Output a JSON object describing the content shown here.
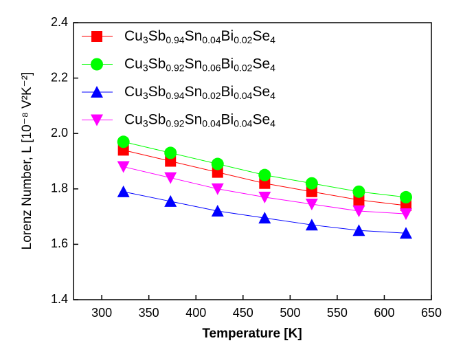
{
  "chart_data": {
    "type": "line",
    "x_label": "Temperature [K]",
    "y_label": "Lorenz Number, L [10⁻⁸ V²K⁻²]",
    "x": [
      323,
      373,
      423,
      473,
      523,
      573,
      623
    ],
    "series": [
      {
        "name": "Cu3Sb0.94Sn0.04Bi0.02Se4",
        "color": "#ff0000",
        "marker": "square",
        "values": [
          1.94,
          1.9,
          1.86,
          1.82,
          1.79,
          1.76,
          1.74
        ]
      },
      {
        "name": "Cu3Sb0.92Sn0.06Bi0.02Se4",
        "color": "#00ff00",
        "marker": "circle",
        "values": [
          1.97,
          1.93,
          1.89,
          1.85,
          1.82,
          1.79,
          1.77
        ]
      },
      {
        "name": "Cu3Sb0.94Sn0.02Bi0.04Se4",
        "color": "#0000ff",
        "marker": "triangle-up",
        "values": [
          1.79,
          1.755,
          1.72,
          1.695,
          1.67,
          1.65,
          1.64
        ]
      },
      {
        "name": "Cu3Sb0.92Sn0.04Bi0.04Se4",
        "color": "#ff00ff",
        "marker": "triangle-down",
        "values": [
          1.88,
          1.84,
          1.8,
          1.77,
          1.745,
          1.72,
          1.71
        ]
      }
    ],
    "xlim": [
      270,
      650
    ],
    "xticks": [
      300,
      350,
      400,
      450,
      500,
      550,
      600,
      650
    ],
    "ylim": [
      1.4,
      2.4
    ],
    "yticks": [
      1.4,
      1.6,
      1.8,
      {
        "value": 2.0,
        "label": "2.0"
      },
      2.2,
      2.4
    ],
    "legend": "upper left"
  }
}
